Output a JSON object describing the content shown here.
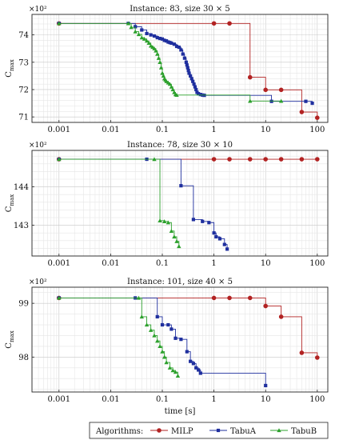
{
  "chart_data": [
    {
      "type": "line",
      "title": "Instance: 83, size 30 × 5",
      "ylabel_main": "C",
      "ylabel_sub": "max",
      "y_multiplier": "×10²",
      "xlabel": "",
      "xscale": "log",
      "xlim": [
        0.0003,
        160
      ],
      "ylim": [
        70.8,
        74.75
      ],
      "xticks": [
        0.001,
        0.01,
        0.1,
        1,
        10,
        100
      ],
      "xtick_labels": [
        "0.001",
        "0.01",
        "0.1",
        "1",
        "10",
        "100"
      ],
      "yticks": [
        71,
        72,
        73,
        74
      ],
      "ytick_labels": [
        "71",
        "72",
        "73",
        "74"
      ],
      "grid": true,
      "series": [
        {
          "name": "MILP",
          "color": "#b22222",
          "marker": "circle",
          "x": [
            0.001,
            1,
            2,
            5,
            10,
            20,
            50,
            100
          ],
          "y": [
            74.42,
            74.42,
            74.42,
            72.45,
            71.99,
            71.99,
            71.18,
            70.97
          ]
        },
        {
          "name": "TabuA",
          "color": "#1f2f9e",
          "marker": "square",
          "x": [
            0.001,
            0.022,
            0.03,
            0.04,
            0.05,
            0.06,
            0.07,
            0.08,
            0.09,
            0.1,
            0.11,
            0.12,
            0.13,
            0.14,
            0.15,
            0.17,
            0.19,
            0.21,
            0.23,
            0.25,
            0.27,
            0.29,
            0.3,
            0.31,
            0.32,
            0.33,
            0.35,
            0.37,
            0.39,
            0.41,
            0.43,
            0.45,
            0.47,
            0.5,
            0.55,
            0.6,
            0.65,
            13,
            60,
            80
          ],
          "y": [
            74.42,
            74.42,
            74.3,
            74.18,
            74.05,
            74.0,
            73.96,
            73.9,
            73.87,
            73.85,
            73.8,
            73.78,
            73.74,
            73.72,
            73.7,
            73.66,
            73.58,
            73.55,
            73.45,
            73.3,
            73.15,
            73.0,
            72.9,
            72.8,
            72.7,
            72.6,
            72.5,
            72.4,
            72.3,
            72.2,
            72.1,
            72.0,
            71.9,
            71.85,
            71.82,
            71.8,
            71.79,
            71.57,
            71.57,
            71.5
          ]
        },
        {
          "name": "TabuB",
          "color": "#2ca02c",
          "marker": "triangle",
          "x": [
            0.001,
            0.022,
            0.025,
            0.03,
            0.035,
            0.04,
            0.045,
            0.05,
            0.055,
            0.06,
            0.065,
            0.07,
            0.075,
            0.08,
            0.085,
            0.09,
            0.095,
            0.1,
            0.105,
            0.11,
            0.115,
            0.12,
            0.13,
            0.14,
            0.15,
            0.16,
            0.17,
            0.18,
            0.19,
            5,
            20
          ],
          "y": [
            74.42,
            74.42,
            74.28,
            74.12,
            74.02,
            73.9,
            73.85,
            73.78,
            73.7,
            73.6,
            73.55,
            73.5,
            73.42,
            73.3,
            73.15,
            73.0,
            72.8,
            72.6,
            72.5,
            72.4,
            72.35,
            72.3,
            72.25,
            72.2,
            72.1,
            72.0,
            71.9,
            71.82,
            71.8,
            71.58,
            71.58
          ]
        }
      ]
    },
    {
      "type": "line",
      "title": "Instance: 78, size 30 × 10",
      "ylabel_main": "C",
      "ylabel_sub": "max",
      "y_multiplier": "×10²",
      "xlabel": "",
      "xscale": "log",
      "xlim": [
        0.0003,
        160
      ],
      "ylim": [
        142.2,
        144.95
      ],
      "xticks": [
        0.001,
        0.01,
        0.1,
        1,
        10,
        100
      ],
      "xtick_labels": [
        "0.001",
        "0.01",
        "0.1",
        "1",
        "10",
        "100"
      ],
      "yticks": [
        143,
        144
      ],
      "ytick_labels": [
        "143",
        "144"
      ],
      "grid": true,
      "series": [
        {
          "name": "MILP",
          "color": "#b22222",
          "marker": "circle",
          "x": [
            0.001,
            1,
            2,
            5,
            10,
            20,
            50,
            100
          ],
          "y": [
            144.72,
            144.72,
            144.72,
            144.72,
            144.72,
            144.72,
            144.72,
            144.72
          ]
        },
        {
          "name": "TabuA",
          "color": "#1f2f9e",
          "marker": "square",
          "x": [
            0.001,
            0.05,
            0.23,
            0.4,
            0.6,
            0.8,
            1.0,
            1.1,
            1.3,
            1.6,
            1.8
          ],
          "y": [
            144.72,
            144.72,
            144.03,
            143.15,
            143.1,
            143.07,
            142.8,
            142.7,
            142.65,
            142.5,
            142.38
          ]
        },
        {
          "name": "TabuB",
          "color": "#2ca02c",
          "marker": "triangle",
          "x": [
            0.001,
            0.07,
            0.09,
            0.11,
            0.13,
            0.15,
            0.17,
            0.19,
            0.21
          ],
          "y": [
            144.72,
            144.72,
            143.12,
            143.1,
            143.07,
            142.85,
            142.7,
            142.58,
            142.45
          ]
        }
      ]
    },
    {
      "type": "line",
      "title": "Instance: 101, size 40 × 5",
      "ylabel_main": "C",
      "ylabel_sub": "max",
      "y_multiplier": "×10²",
      "xlabel": "time [s]",
      "xscale": "log",
      "xlim": [
        0.0003,
        160
      ],
      "ylim": [
        97.35,
        99.3
      ],
      "xticks": [
        0.001,
        0.01,
        0.1,
        1,
        10,
        100
      ],
      "xtick_labels": [
        "0.001",
        "0.01",
        "0.1",
        "1",
        "10",
        "100"
      ],
      "yticks": [
        98,
        99
      ],
      "ytick_labels": [
        "98",
        "99"
      ],
      "grid": true,
      "series": [
        {
          "name": "MILP",
          "color": "#b22222",
          "marker": "circle",
          "x": [
            0.001,
            1,
            2,
            5,
            10,
            20,
            50,
            100
          ],
          "y": [
            99.1,
            99.1,
            99.1,
            99.1,
            98.95,
            98.75,
            98.08,
            97.99
          ]
        },
        {
          "name": "TabuA",
          "color": "#1f2f9e",
          "marker": "square",
          "x": [
            0.001,
            0.03,
            0.08,
            0.1,
            0.13,
            0.15,
            0.18,
            0.23,
            0.3,
            0.35,
            0.4,
            0.45,
            0.5,
            0.55,
            10
          ],
          "y": [
            99.1,
            99.1,
            98.75,
            98.6,
            98.6,
            98.52,
            98.35,
            98.33,
            98.1,
            97.92,
            97.88,
            97.8,
            97.76,
            97.7,
            97.47
          ]
        },
        {
          "name": "TabuB",
          "color": "#2ca02c",
          "marker": "triangle",
          "x": [
            0.001,
            0.035,
            0.04,
            0.05,
            0.06,
            0.07,
            0.08,
            0.09,
            0.1,
            0.11,
            0.12,
            0.14,
            0.16,
            0.18,
            0.2
          ],
          "y": [
            99.1,
            99.1,
            98.75,
            98.6,
            98.5,
            98.4,
            98.3,
            98.2,
            98.1,
            98.0,
            97.9,
            97.8,
            97.75,
            97.72,
            97.65
          ]
        }
      ]
    }
  ],
  "legend": {
    "label": "Algorithms:",
    "items": [
      {
        "name": "MILP",
        "color": "#b22222",
        "marker": "circle"
      },
      {
        "name": "TabuA",
        "color": "#1f2f9e",
        "marker": "square"
      },
      {
        "name": "TabuB",
        "color": "#2ca02c",
        "marker": "triangle"
      }
    ]
  }
}
